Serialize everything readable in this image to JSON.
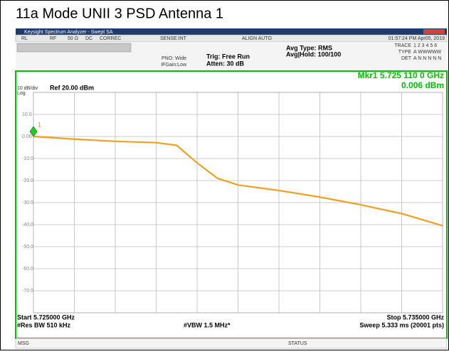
{
  "title": "11a Mode UNII 3 PSD Antenna 1",
  "window": {
    "title": "Keysight Spectrum Analyzer - Swept SA"
  },
  "status_bar": {
    "items": [
      "RL",
      "RF",
      "50 Ω",
      "DC",
      "CORREC",
      "SENSE:INT",
      "ALIGN AUTO"
    ],
    "time": "01:57:24 PM Apr05, 2019"
  },
  "settings": {
    "pno": "PNO: Wide",
    "ifgain": "IFGain:Low",
    "trig": "Trig: Free Run",
    "atten": "Atten: 30 dB",
    "avg_type": "Avg Type: RMS",
    "avg_hold": "Avg|Hold: 100/100",
    "trace_label": "TRACE",
    "trace_nums": "1 2 3 4 5 6",
    "type_label": "TYPE",
    "type_val": "A WWWWW",
    "det_label": "DET",
    "det_val": "A N N N N N"
  },
  "marker": {
    "freq": "Mkr1 5.725 110 0 GHz",
    "level": "0.006 dBm",
    "id": "1"
  },
  "scale": {
    "div": "10 dB/div",
    "log": "Log",
    "ref": "Ref 20.00 dBm"
  },
  "footer": {
    "start": "Start 5.725000 GHz",
    "rbw": "#Res BW 510 kHz",
    "vbw": "#VBW 1.5 MHz*",
    "stop": "Stop 5.735000 GHz",
    "sweep": "Sweep  5.333 ms (20001 pts)",
    "msg": "MSG",
    "status": "STATUS"
  },
  "chart_data": {
    "type": "line",
    "x": [
      5.725,
      5.726,
      5.727,
      5.728,
      5.7285,
      5.729,
      5.7295,
      5.73,
      5.731,
      5.732,
      5.733,
      5.734,
      5.735
    ],
    "series": [
      {
        "color": "#f0a020",
        "values": [
          0.006,
          -1.2,
          -2.2,
          -2.8,
          -4,
          -12,
          -19,
          -22,
          -24.5,
          -27.5,
          -31,
          -35,
          -40.5
        ]
      }
    ],
    "xlim": [
      5.725,
      5.735
    ],
    "xticks": [
      5.725,
      5.726,
      5.727,
      5.728,
      5.729,
      5.73,
      5.731,
      5.732,
      5.733,
      5.734,
      5.735
    ],
    "ylim": [
      -80,
      20
    ],
    "yticks": [
      {
        "value": 10,
        "label": "10.0"
      },
      {
        "value": 0,
        "label": "0.00"
      },
      {
        "value": -10,
        "label": "-10.0"
      },
      {
        "value": -20,
        "label": "-20.0"
      },
      {
        "value": -30,
        "label": "-30.0"
      },
      {
        "value": -40,
        "label": "-40.0"
      },
      {
        "value": -50,
        "label": "-50.0"
      },
      {
        "value": -60,
        "label": "-60.0"
      },
      {
        "value": -70,
        "label": "-70.0"
      }
    ],
    "grid": true
  }
}
